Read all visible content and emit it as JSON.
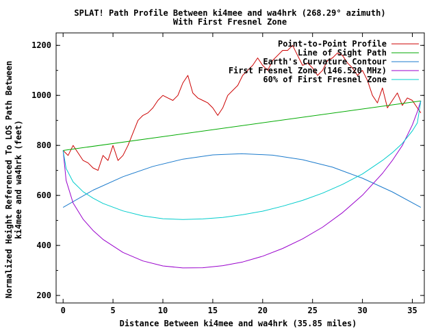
{
  "chart_data": {
    "type": "line",
    "title": "SPLAT! Path Profile Between ki4mee and wa4hrk (268.29° azimuth)",
    "subtitle": "With First Fresnel Zone",
    "xlabel": "Distance Between ki4mee and wa4hrk (35.85 miles)",
    "ylabel": "Normalized Height Referenced To LOS Path Between",
    "ylabel2": "ki4mee and wa4hrk (feet)",
    "xlim": [
      -0.7,
      36.2
    ],
    "ylim": [
      170,
      1250
    ],
    "xticks": [
      0,
      5,
      10,
      15,
      20,
      25,
      30,
      35
    ],
    "yticks": [
      200,
      400,
      600,
      800,
      1000,
      1200
    ],
    "grid": false,
    "legend_position": "top-right",
    "series": [
      {
        "name": "Point-to-Point Profile",
        "color": "#cc0000",
        "x": [
          0,
          0.5,
          1,
          1.5,
          2,
          2.5,
          3,
          3.5,
          4,
          4.5,
          5,
          5.5,
          6,
          6.5,
          7,
          7.5,
          8,
          8.5,
          9,
          9.5,
          10,
          10.5,
          11,
          11.5,
          12,
          12.5,
          13,
          13.5,
          14,
          14.5,
          15,
          15.5,
          16,
          16.5,
          17,
          17.5,
          18,
          18.5,
          19,
          19.5,
          20,
          20.5,
          21,
          21.5,
          22,
          22.5,
          23,
          23.5,
          24,
          24.5,
          25,
          25.5,
          26,
          26.5,
          27,
          27.5,
          28,
          28.5,
          29,
          29.5,
          30,
          30.5,
          31,
          31.5,
          32,
          32.5,
          33,
          33.5,
          34,
          34.5,
          35,
          35.5,
          35.85
        ],
        "y": [
          780,
          760,
          800,
          770,
          740,
          730,
          710,
          700,
          760,
          740,
          800,
          740,
          760,
          800,
          850,
          900,
          920,
          930,
          950,
          980,
          1000,
          990,
          980,
          1000,
          1050,
          1080,
          1010,
          990,
          980,
          970,
          950,
          920,
          950,
          1000,
          1020,
          1040,
          1080,
          1100,
          1120,
          1150,
          1120,
          1100,
          1140,
          1160,
          1180,
          1180,
          1200,
          1160,
          1120,
          1130,
          1110,
          1080,
          1100,
          1140,
          1150,
          1170,
          1160,
          1130,
          1110,
          1080,
          1100,
          1060,
          1000,
          970,
          1030,
          950,
          980,
          1010,
          960,
          990,
          980,
          950,
          930
        ]
      },
      {
        "name": "Line of Sight Path",
        "color": "#00aa00",
        "x": [
          0,
          35.85
        ],
        "y": [
          780,
          978
        ]
      },
      {
        "name": "Earth's Curvature Contour",
        "color": "#1a7acc",
        "x": [
          0,
          3,
          6,
          9,
          12,
          15,
          17.9,
          21,
          24,
          27,
          30,
          33,
          35.85
        ],
        "y": [
          552,
          621,
          675,
          716,
          745,
          762,
          767,
          761,
          743,
          713,
          669,
          614,
          552
        ]
      },
      {
        "name": "First Fresnel Zone (146.520 MHz)",
        "color": "#9900cc",
        "x": [
          0,
          0.3,
          1,
          2,
          3,
          4,
          6,
          8,
          10,
          12,
          14,
          16,
          18,
          20,
          22,
          24,
          26,
          28,
          30,
          32,
          33,
          34,
          35,
          35.5,
          35.85
        ],
        "y": [
          780,
          660,
          570,
          505,
          460,
          424,
          372,
          338,
          318,
          310,
          311,
          319,
          334,
          357,
          388,
          426,
          473,
          531,
          601,
          688,
          740,
          800,
          882,
          935,
          978
        ]
      },
      {
        "name": "60% of First Fresnel Zone",
        "color": "#00cccc",
        "x": [
          0,
          0.3,
          1,
          2,
          3,
          4,
          6,
          8,
          10,
          12,
          14,
          16,
          18,
          20,
          22,
          24,
          26,
          28,
          30,
          32,
          33,
          34,
          35,
          35.5,
          35.85
        ],
        "y": [
          780,
          708,
          654,
          615,
          589,
          568,
          538,
          518,
          507,
          504,
          506,
          512,
          523,
          537,
          557,
          580,
          609,
          644,
          686,
          740,
          771,
          808,
          858,
          890,
          978
        ]
      }
    ]
  }
}
